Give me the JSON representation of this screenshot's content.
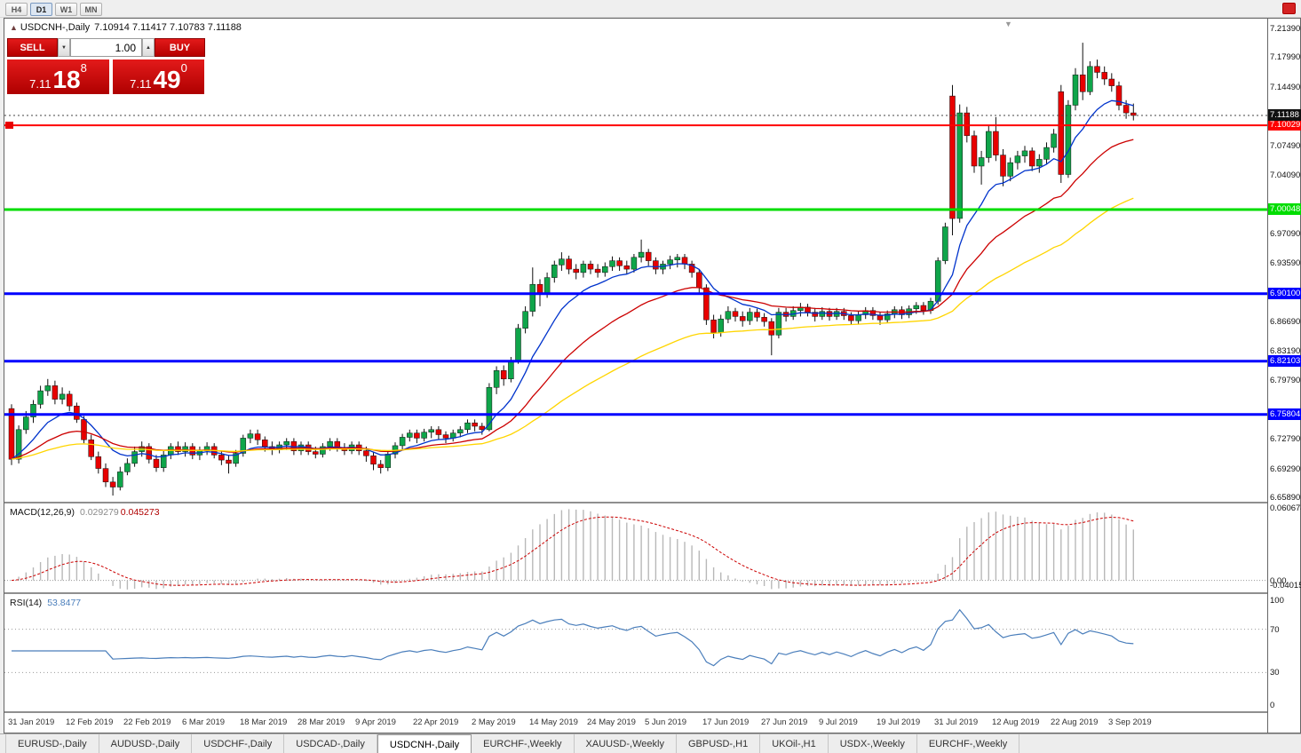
{
  "toolbar": {
    "timeframes": {
      "items": [
        "H4",
        "D1",
        "W1",
        "MN"
      ],
      "active_index": 1
    }
  },
  "header": {
    "collapse_glyph": "▲",
    "symbol": "USDCNH-,Daily",
    "ohlc": "7.10914 7.11417 7.10783 7.11188"
  },
  "one_click": {
    "sell_label": "SELL",
    "buy_label": "BUY",
    "volume": "1.00",
    "spin_down_glyph": "▼",
    "spin_up_glyph": "▲",
    "sell_price": {
      "prefix": "7.11",
      "big": "18",
      "sup": "8"
    },
    "buy_price": {
      "prefix": "7.11",
      "big": "49",
      "sup": "0"
    }
  },
  "macd": {
    "name": "MACD(12,26,9)",
    "main_value": "0.029279",
    "signal_value": "0.045273",
    "axis": [
      "0.060674",
      "0.00",
      "-0.040152"
    ]
  },
  "rsi": {
    "name": "RSI(14)",
    "value": "53.8477",
    "axis": [
      "100",
      "70",
      "30",
      "0"
    ]
  },
  "price_axis": {
    "ticks": [
      "7.21390",
      "7.17990",
      "7.14490",
      "7.07490",
      "7.04090",
      "6.97090",
      "6.93590",
      "6.86690",
      "6.83190",
      "6.79790",
      "6.72790",
      "6.69290",
      "6.65890"
    ]
  },
  "dates": [
    "31 Jan 2019",
    "12 Feb 2019",
    "22 Feb 2019",
    "6 Mar 2019",
    "18 Mar 2019",
    "28 Mar 2019",
    "9 Apr 2019",
    "22 Apr 2019",
    "2 May 2019",
    "14 May 2019",
    "24 May 2019",
    "5 Jun 2019",
    "17 Jun 2019",
    "27 Jun 2019",
    "9 Jul 2019",
    "19 Jul 2019",
    "31 Jul 2019",
    "12 Aug 2019",
    "22 Aug 2019",
    "3 Sep 2019"
  ],
  "tabs": {
    "items": [
      "EURUSD-,Daily",
      "AUDUSD-,Daily",
      "USDCHF-,Daily",
      "USDCAD-,Daily",
      "USDCNH-,Daily",
      "EURCHF-,Weekly",
      "XAUUSD-,Weekly",
      "GBPUSD-,H1",
      "UKOil-,H1",
      "USDX-,Weekly",
      "EURCHF-,Weekly"
    ],
    "active_index": 4
  },
  "chart_data": {
    "type": "candlestick",
    "symbol": "USDCNH",
    "timeframe": "Daily",
    "up_color": "#0FA54A",
    "down_color": "#E80000",
    "bid": {
      "price": 7.11188,
      "label": "7.11188",
      "box_color": "#111111"
    },
    "hlines": [
      {
        "price": 7.10029,
        "label": "7.10029",
        "color": "#FF0000",
        "width": 2
      },
      {
        "price": 7.00048,
        "label": "7.00048",
        "color": "#00DD00",
        "width": 3
      },
      {
        "price": 6.901,
        "label": "6.90100",
        "color": "#0000FF",
        "width": 3
      },
      {
        "price": 6.82103,
        "label": "6.82103",
        "color": "#0000FF",
        "width": 3
      },
      {
        "price": 6.75804,
        "label": "6.75804",
        "color": "#0000FF",
        "width": 3
      }
    ],
    "mas": [
      {
        "period": 10,
        "color": "#0033CC"
      },
      {
        "period": 25,
        "color": "#CC0000"
      },
      {
        "period": 55,
        "color": "#FFD500"
      }
    ],
    "price_range": {
      "top": 7.2265,
      "bottom": 6.6547
    },
    "candles": [
      [
        6.765,
        6.77,
        6.698,
        6.705
      ],
      [
        6.705,
        6.745,
        6.7,
        6.74
      ],
      [
        6.74,
        6.762,
        6.735,
        6.755
      ],
      [
        6.755,
        6.775,
        6.748,
        6.77
      ],
      [
        6.77,
        6.792,
        6.765,
        6.786
      ],
      [
        6.786,
        6.8,
        6.78,
        6.792
      ],
      [
        6.792,
        6.798,
        6.77,
        6.776
      ],
      [
        6.776,
        6.79,
        6.77,
        6.782
      ],
      [
        6.782,
        6.786,
        6.762,
        6.768
      ],
      [
        6.768,
        6.772,
        6.748,
        6.752
      ],
      [
        6.752,
        6.756,
        6.724,
        6.728
      ],
      [
        6.728,
        6.734,
        6.704,
        6.708
      ],
      [
        6.708,
        6.714,
        6.688,
        6.694
      ],
      [
        6.694,
        6.7,
        6.672,
        6.678
      ],
      [
        6.678,
        6.684,
        6.662,
        6.672
      ],
      [
        6.672,
        6.696,
        6.668,
        6.69
      ],
      [
        6.69,
        6.706,
        6.686,
        6.7
      ],
      [
        6.7,
        6.72,
        6.696,
        6.714
      ],
      [
        6.714,
        6.726,
        6.708,
        6.72
      ],
      [
        6.72,
        6.724,
        6.7,
        6.705
      ],
      [
        6.705,
        6.71,
        6.69,
        6.695
      ],
      [
        6.695,
        6.715,
        6.69,
        6.71
      ],
      [
        6.71,
        6.724,
        6.705,
        6.72
      ],
      [
        6.72,
        6.726,
        6.71,
        6.714
      ],
      [
        6.714,
        6.725,
        6.708,
        6.72
      ],
      [
        6.72,
        6.724,
        6.705,
        6.71
      ],
      [
        6.71,
        6.72,
        6.704,
        6.715
      ],
      [
        6.715,
        6.725,
        6.71,
        6.72
      ],
      [
        6.72,
        6.724,
        6.706,
        6.71
      ],
      [
        6.71,
        6.714,
        6.698,
        6.704
      ],
      [
        6.704,
        6.71,
        6.688,
        6.7
      ],
      [
        6.7,
        6.716,
        6.696,
        6.712
      ],
      [
        6.712,
        6.734,
        6.708,
        6.73
      ],
      [
        6.73,
        6.74,
        6.724,
        6.735
      ],
      [
        6.735,
        6.74,
        6.722,
        6.728
      ],
      [
        6.728,
        6.732,
        6.714,
        6.72
      ],
      [
        6.72,
        6.726,
        6.71,
        6.716
      ],
      [
        6.716,
        6.726,
        6.712,
        6.722
      ],
      [
        6.722,
        6.73,
        6.716,
        6.726
      ],
      [
        6.726,
        6.73,
        6.71,
        6.715
      ],
      [
        6.715,
        6.726,
        6.71,
        6.722
      ],
      [
        6.722,
        6.726,
        6.71,
        6.714
      ],
      [
        6.714,
        6.72,
        6.706,
        6.711
      ],
      [
        6.711,
        6.724,
        6.707,
        6.72
      ],
      [
        6.72,
        6.73,
        6.715,
        6.726
      ],
      [
        6.726,
        6.73,
        6.714,
        6.719
      ],
      [
        6.719,
        6.724,
        6.71,
        6.715
      ],
      [
        6.715,
        6.726,
        6.711,
        6.722
      ],
      [
        6.722,
        6.726,
        6.71,
        6.715
      ],
      [
        6.715,
        6.72,
        6.702,
        6.709
      ],
      [
        6.709,
        6.713,
        6.692,
        6.699
      ],
      [
        6.699,
        6.704,
        6.688,
        6.695
      ],
      [
        6.695,
        6.715,
        6.691,
        6.711
      ],
      [
        6.711,
        6.725,
        6.706,
        6.721
      ],
      [
        6.721,
        6.735,
        6.716,
        6.731
      ],
      [
        6.731,
        6.74,
        6.726,
        6.736
      ],
      [
        6.736,
        6.74,
        6.724,
        6.73
      ],
      [
        6.73,
        6.741,
        6.726,
        6.737
      ],
      [
        6.737,
        6.744,
        6.73,
        6.74
      ],
      [
        6.74,
        6.744,
        6.728,
        6.734
      ],
      [
        6.734,
        6.738,
        6.724,
        6.73
      ],
      [
        6.73,
        6.74,
        6.726,
        6.736
      ],
      [
        6.736,
        6.744,
        6.731,
        6.74
      ],
      [
        6.74,
        6.752,
        6.736,
        6.748
      ],
      [
        6.748,
        6.752,
        6.738,
        6.744
      ],
      [
        6.744,
        6.748,
        6.734,
        6.74
      ],
      [
        6.74,
        6.795,
        6.738,
        6.79
      ],
      [
        6.79,
        6.815,
        6.782,
        6.81
      ],
      [
        6.81,
        6.816,
        6.792,
        6.8
      ],
      [
        6.8,
        6.826,
        6.796,
        6.822
      ],
      [
        6.822,
        6.865,
        6.818,
        6.86
      ],
      [
        6.86,
        6.886,
        6.854,
        6.88
      ],
      [
        6.88,
        6.932,
        6.874,
        6.912
      ],
      [
        6.912,
        6.918,
        6.886,
        6.902
      ],
      [
        6.902,
        6.926,
        6.896,
        6.92
      ],
      [
        6.92,
        6.94,
        6.914,
        6.935
      ],
      [
        6.935,
        6.95,
        6.928,
        6.942
      ],
      [
        6.942,
        6.946,
        6.924,
        6.93
      ],
      [
        6.93,
        6.936,
        6.918,
        6.926
      ],
      [
        6.926,
        6.94,
        6.92,
        6.936
      ],
      [
        6.936,
        6.94,
        6.924,
        6.93
      ],
      [
        6.93,
        6.936,
        6.92,
        6.926
      ],
      [
        6.926,
        6.938,
        6.921,
        6.933
      ],
      [
        6.933,
        6.945,
        6.928,
        6.94
      ],
      [
        6.94,
        6.944,
        6.928,
        6.934
      ],
      [
        6.934,
        6.94,
        6.924,
        6.93
      ],
      [
        6.93,
        6.948,
        6.926,
        6.944
      ],
      [
        6.944,
        6.965,
        6.938,
        6.95
      ],
      [
        6.95,
        6.954,
        6.934,
        6.94
      ],
      [
        6.94,
        6.944,
        6.924,
        6.93
      ],
      [
        6.93,
        6.94,
        6.924,
        6.936
      ],
      [
        6.936,
        6.946,
        6.93,
        6.941
      ],
      [
        6.941,
        6.948,
        6.932,
        6.944
      ],
      [
        6.944,
        6.948,
        6.93,
        6.936
      ],
      [
        6.936,
        6.94,
        6.92,
        6.926
      ],
      [
        6.926,
        6.93,
        6.9,
        6.908
      ],
      [
        6.908,
        6.912,
        6.864,
        6.87
      ],
      [
        6.87,
        6.876,
        6.848,
        6.855
      ],
      [
        6.855,
        6.876,
        6.85,
        6.871
      ],
      [
        6.871,
        6.886,
        6.866,
        6.88
      ],
      [
        6.88,
        6.884,
        6.868,
        6.874
      ],
      [
        6.874,
        6.88,
        6.862,
        6.869
      ],
      [
        6.869,
        6.884,
        6.864,
        6.879
      ],
      [
        6.879,
        6.883,
        6.868,
        6.873
      ],
      [
        6.873,
        6.878,
        6.862,
        6.868
      ],
      [
        6.868,
        6.872,
        6.828,
        6.852
      ],
      [
        6.852,
        6.884,
        6.848,
        6.879
      ],
      [
        6.879,
        6.884,
        6.868,
        6.874
      ],
      [
        6.874,
        6.886,
        6.87,
        6.881
      ],
      [
        6.881,
        6.89,
        6.874,
        6.885
      ],
      [
        6.885,
        6.889,
        6.874,
        6.879
      ],
      [
        6.879,
        6.884,
        6.868,
        6.874
      ],
      [
        6.874,
        6.885,
        6.87,
        6.88
      ],
      [
        6.88,
        6.884,
        6.869,
        6.874
      ],
      [
        6.874,
        6.884,
        6.87,
        6.88
      ],
      [
        6.88,
        6.884,
        6.87,
        6.875
      ],
      [
        6.875,
        6.879,
        6.864,
        6.869
      ],
      [
        6.869,
        6.88,
        6.865,
        6.876
      ],
      [
        6.876,
        6.885,
        6.871,
        6.881
      ],
      [
        6.881,
        6.885,
        6.87,
        6.875
      ],
      [
        6.875,
        6.879,
        6.864,
        6.87
      ],
      [
        6.87,
        6.881,
        6.866,
        6.877
      ],
      [
        6.877,
        6.886,
        6.872,
        6.882
      ],
      [
        6.882,
        6.886,
        6.871,
        6.876
      ],
      [
        6.876,
        6.887,
        6.872,
        6.883
      ],
      [
        6.883,
        6.891,
        6.877,
        6.887
      ],
      [
        6.887,
        6.891,
        6.876,
        6.881
      ],
      [
        6.881,
        6.896,
        6.877,
        6.892
      ],
      [
        6.892,
        6.944,
        6.888,
        6.94
      ],
      [
        6.94,
        6.985,
        6.936,
        6.98
      ],
      [
        7.135,
        7.148,
        6.97,
        6.99
      ],
      [
        6.99,
        7.125,
        6.985,
        7.115
      ],
      [
        7.115,
        7.122,
        7.08,
        7.088
      ],
      [
        7.088,
        7.094,
        7.044,
        7.052
      ],
      [
        7.052,
        7.07,
        7.03,
        7.062
      ],
      [
        7.062,
        7.1,
        7.056,
        7.093
      ],
      [
        7.093,
        7.11,
        7.058,
        7.065
      ],
      [
        7.065,
        7.072,
        7.028,
        7.04
      ],
      [
        7.04,
        7.062,
        7.034,
        7.056
      ],
      [
        7.056,
        7.07,
        7.048,
        7.064
      ],
      [
        7.064,
        7.076,
        7.056,
        7.07
      ],
      [
        7.07,
        7.074,
        7.046,
        7.052
      ],
      [
        7.052,
        7.066,
        7.044,
        7.06
      ],
      [
        7.06,
        7.08,
        7.054,
        7.074
      ],
      [
        7.074,
        7.096,
        7.068,
        7.09
      ],
      [
        7.14,
        7.148,
        7.032,
        7.042
      ],
      [
        7.042,
        7.13,
        7.038,
        7.124
      ],
      [
        7.124,
        7.168,
        7.118,
        7.16
      ],
      [
        7.16,
        7.198,
        7.13,
        7.14
      ],
      [
        7.14,
        7.176,
        7.136,
        7.17
      ],
      [
        7.17,
        7.178,
        7.156,
        7.163
      ],
      [
        7.163,
        7.17,
        7.148,
        7.155
      ],
      [
        7.155,
        7.162,
        7.14,
        7.147
      ],
      [
        7.147,
        7.152,
        7.118,
        7.124
      ],
      [
        7.124,
        7.13,
        7.108,
        7.115
      ],
      [
        7.115,
        7.126,
        7.106,
        7.112
      ]
    ]
  }
}
